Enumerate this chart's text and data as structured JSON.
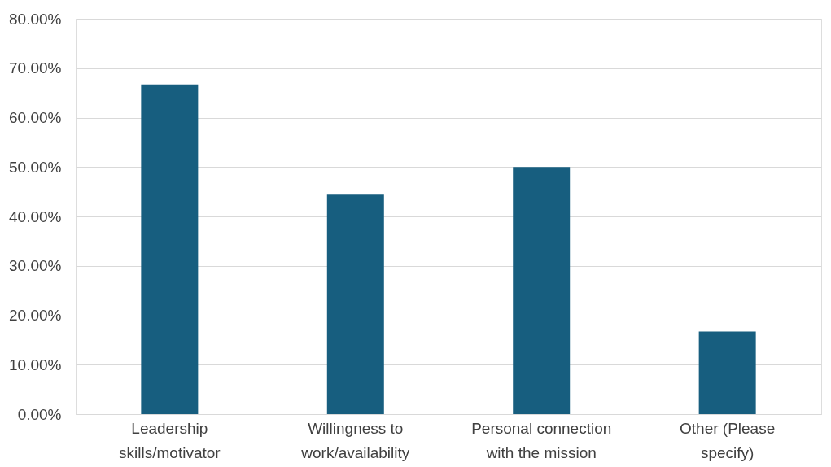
{
  "chart_data": {
    "type": "bar",
    "categories": [
      "Leadership skills/motivator",
      "Willingness to work/availability",
      "Personal connection with the mission",
      "Other (Please specify)"
    ],
    "values": [
      66.7,
      44.4,
      50.0,
      16.7
    ],
    "color": "#175e7f",
    "ylim": [
      0,
      80
    ],
    "yticks": [
      {
        "value": 0,
        "label": "0.00%"
      },
      {
        "value": 10,
        "label": "10.00%"
      },
      {
        "value": 20,
        "label": "20.00%"
      },
      {
        "value": 30,
        "label": "30.00%"
      },
      {
        "value": 40,
        "label": "40.00%"
      },
      {
        "value": 50,
        "label": "50.00%"
      },
      {
        "value": 60,
        "label": "60.00%"
      },
      {
        "value": 70,
        "label": "70.00%"
      },
      {
        "value": 80,
        "label": "80.00%"
      }
    ],
    "grid": "y"
  }
}
